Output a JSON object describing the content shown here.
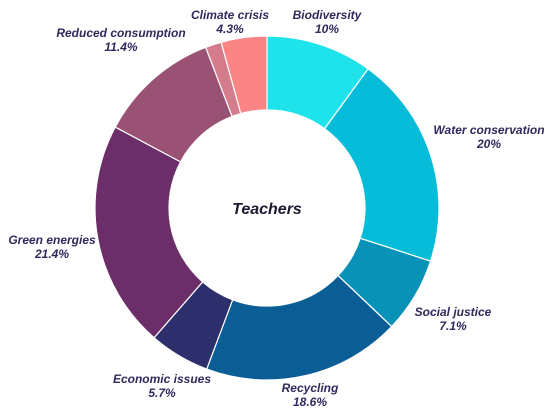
{
  "chart_data": {
    "type": "pie",
    "variant": "donut",
    "center_label": "Teachers",
    "slices": [
      {
        "label": "Biodiversity",
        "display": "10%",
        "value": 10,
        "color": "#1ee3ea"
      },
      {
        "label": "Water conservation",
        "display": "20%",
        "value": 20,
        "color": "#06bcd8"
      },
      {
        "label": "Social justice",
        "display": "7.1%",
        "value": 7.1,
        "color": "#0892b8"
      },
      {
        "label": "Recycling",
        "display": "18.6%",
        "value": 18.6,
        "color": "#0b5d95"
      },
      {
        "label": "Economic issues",
        "display": "5.7%",
        "value": 5.7,
        "color": "#2c2f6b"
      },
      {
        "label": "Green energies",
        "display": "21.4%",
        "value": 21.4,
        "color": "#6b2e69"
      },
      {
        "label": "Reduced consumption",
        "display": "11.4%",
        "value": 11.4,
        "color": "#9a5274"
      },
      {
        "label": "",
        "display": "",
        "value": 1.5,
        "color": "#d47b8c"
      },
      {
        "label": "Climate crisis",
        "display": "4.3%",
        "value": 4.3,
        "color": "#fb8585"
      }
    ]
  }
}
